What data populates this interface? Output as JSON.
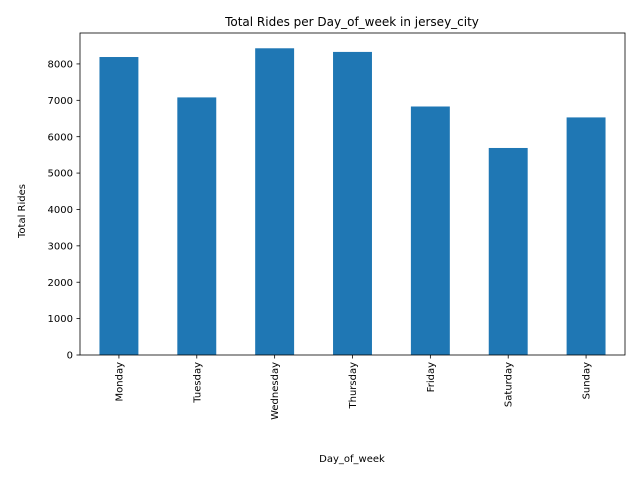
{
  "chart_data": {
    "type": "bar",
    "title": "Total Rides per Day_of_week in jersey_city",
    "xlabel": "Day_of_week",
    "ylabel": "Total Rides",
    "categories": [
      "Monday",
      "Tuesday",
      "Wednesday",
      "Thursday",
      "Friday",
      "Saturday",
      "Sunday"
    ],
    "values": [
      8190,
      7080,
      8430,
      8330,
      6830,
      5690,
      6530
    ],
    "ylim": [
      0,
      8850
    ],
    "yticks": [
      0,
      1000,
      2000,
      3000,
      4000,
      5000,
      6000,
      7000,
      8000
    ],
    "bar_color": "#1f77b4",
    "grid": false,
    "legend": "none"
  }
}
